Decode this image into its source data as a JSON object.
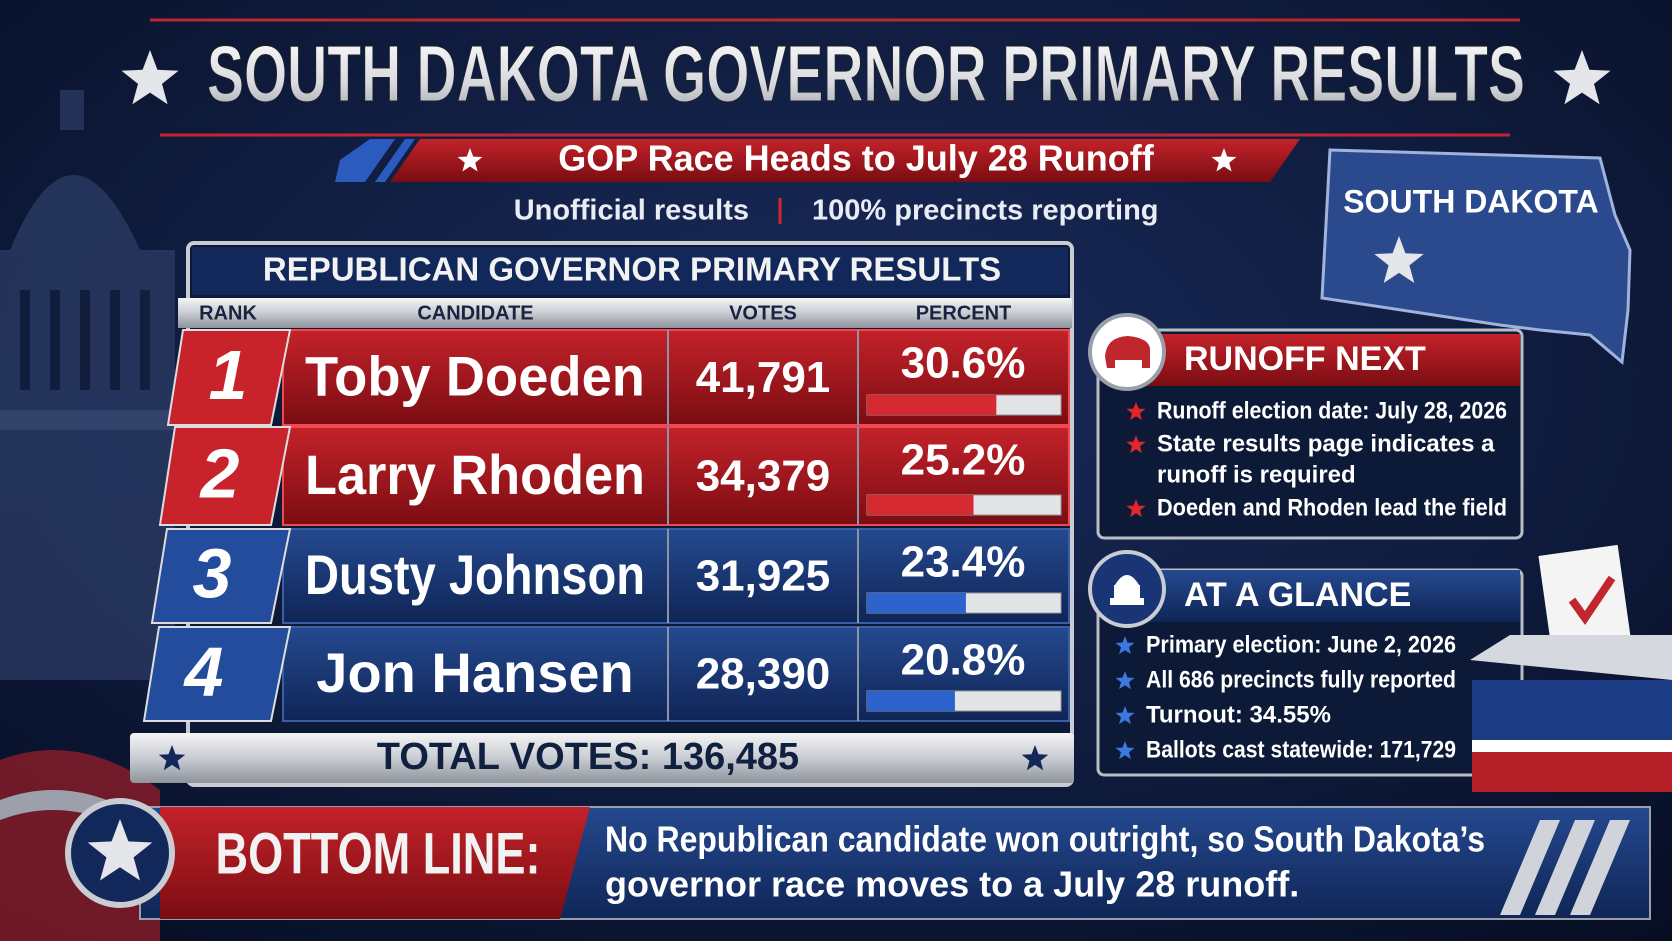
{
  "header": {
    "title": "SOUTH DAKOTA GOVERNOR PRIMARY RESULTS",
    "subtitle": "GOP Race Heads to July 28 Runoff",
    "notes": [
      "Unofficial results",
      "100% precincts reporting"
    ]
  },
  "map_label": "SOUTH DAKOTA",
  "table": {
    "title": "REPUBLICAN GOVERNOR PRIMARY RESULTS",
    "columns": [
      "RANK",
      "CANDIDATE",
      "VOTES",
      "PERCENT"
    ],
    "rows": [
      {
        "rank": 1,
        "candidate": "Toby Doeden",
        "votes": "41,791",
        "percent": {
          "value": 30.6,
          "label": "30.6%"
        }
      },
      {
        "rank": 2,
        "candidate": "Larry Rhoden",
        "votes": "34,379",
        "percent": {
          "value": 25.2,
          "label": "25.2%"
        }
      },
      {
        "rank": 3,
        "candidate": "Dusty Johnson",
        "votes": "31,925",
        "percent": {
          "value": 23.4,
          "label": "23.4%"
        }
      },
      {
        "rank": 4,
        "candidate": "Jon Hansen",
        "votes": "28,390",
        "percent": {
          "value": 20.8,
          "label": "20.8%"
        }
      }
    ],
    "total": "TOTAL VOTES: 136,485"
  },
  "runoff": {
    "title": "RUNOFF NEXT",
    "items": [
      [
        "Runoff election date: July 28, 2026"
      ],
      [
        "State results page indicates a",
        "runoff is required"
      ],
      [
        "Doeden and Rhoden lead the field"
      ]
    ]
  },
  "glance": {
    "title": "AT A GLANCE",
    "items": [
      "Primary election: June 2, 2026",
      "All 686 precincts fully reported",
      "Turnout: 34.55%",
      "Ballots cast statewide: 171,729"
    ]
  },
  "bottom_line": {
    "label": "BOTTOM LINE:",
    "text": [
      "No Republican candidate won outright, so South Dakota’s",
      "governor race moves to a July 28 runoff."
    ]
  }
}
